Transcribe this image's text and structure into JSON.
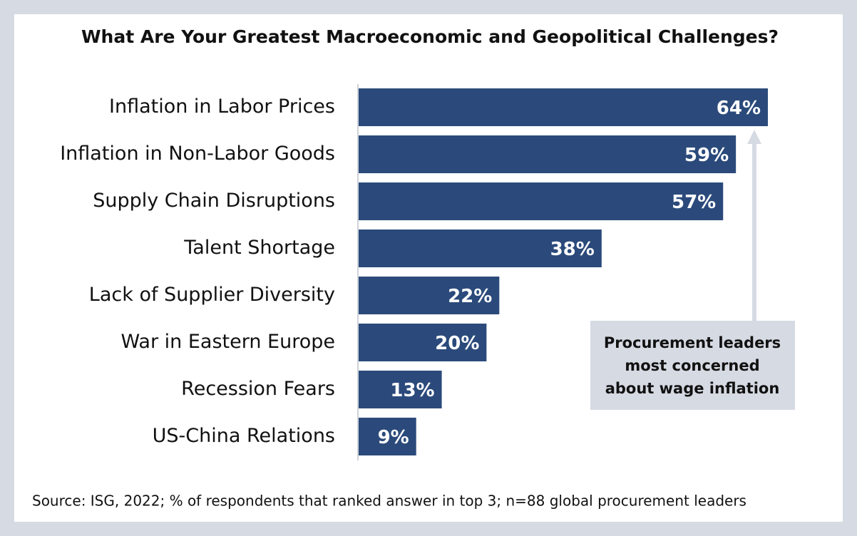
{
  "chart_data": {
    "type": "bar",
    "orientation": "horizontal",
    "title": "What Are Your Greatest Macroeconomic and Geopolitical Challenges?",
    "categories": [
      "Inflation in Labor Prices",
      "Inflation in Non-Labor Goods",
      "Supply Chain Disruptions",
      "Talent Shortage",
      "Lack of Supplier Diversity",
      "War in Eastern Europe",
      "Recession Fears",
      "US-China Relations"
    ],
    "values": [
      64,
      59,
      57,
      38,
      22,
      20,
      13,
      9
    ],
    "value_labels": [
      "64%",
      "59%",
      "57%",
      "38%",
      "22%",
      "20%",
      "13%",
      "9%"
    ],
    "color": "#2b4a7b",
    "xlim": [
      0,
      64
    ],
    "annotation": [
      "Procurement leaders",
      "most concerned",
      "about wage inflation"
    ],
    "source": "Source: ISG, 2022; % of respondents that ranked answer in top 3; n=88 global procurement leaders"
  }
}
